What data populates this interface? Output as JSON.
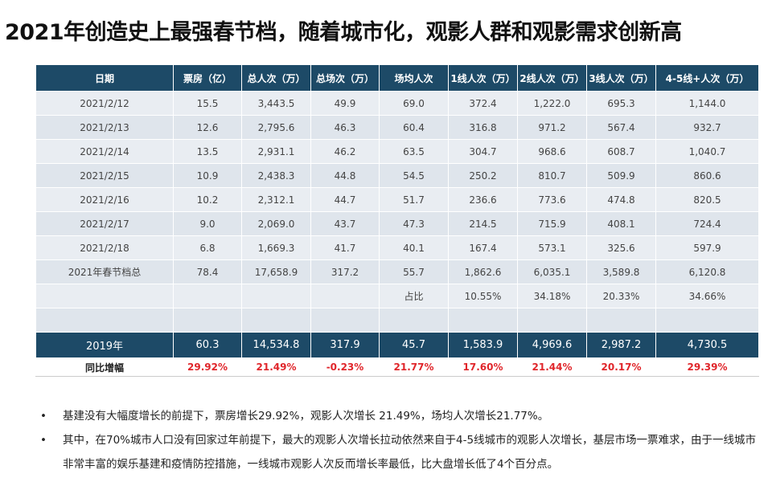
{
  "title": "2021年创造史上最强春节档，随着城市化，观影人群和观影需求创新高",
  "table": {
    "header": [
      "日期",
      "票房（亿）",
      "总人次（万）",
      "总场次（万）",
      "场均人次",
      "1线人次（万）",
      "2线人次（万）",
      "3线人次（万）",
      "4-5线+人次（万）"
    ],
    "rows": [
      [
        "2021/2/12",
        "15.5",
        "3,443.5",
        "49.9",
        "69.0",
        "372.4",
        "1,222.0",
        "695.3",
        "1,144.0"
      ],
      [
        "2021/2/13",
        "12.6",
        "2,795.6",
        "46.3",
        "60.4",
        "316.8",
        "971.2",
        "567.4",
        "932.7"
      ],
      [
        "2021/2/14",
        "13.5",
        "2,931.1",
        "46.2",
        "63.5",
        "304.7",
        "968.6",
        "608.7",
        "1,040.7"
      ],
      [
        "2021/2/15",
        "10.9",
        "2,438.3",
        "44.8",
        "54.5",
        "250.2",
        "810.7",
        "509.9",
        "860.6"
      ],
      [
        "2021/2/16",
        "10.2",
        "2,312.1",
        "44.7",
        "51.7",
        "236.6",
        "773.6",
        "474.8",
        "820.5"
      ],
      [
        "2021/2/17",
        "9.0",
        "2,069.0",
        "43.7",
        "47.3",
        "214.5",
        "715.9",
        "408.1",
        "724.4"
      ],
      [
        "2021/2/18",
        "6.8",
        "1,669.3",
        "41.7",
        "40.1",
        "167.4",
        "573.1",
        "325.6",
        "597.9"
      ],
      [
        "2021年春节档总",
        "78.4",
        "17,658.9",
        "317.2",
        "55.7",
        "1,862.6",
        "6,035.1",
        "3,589.8",
        "6,120.8"
      ]
    ],
    "share": {
      "label": "占比",
      "values": [
        "10.55%",
        "34.18%",
        "20.33%",
        "34.66%"
      ]
    },
    "baseline": [
      "2019年",
      "60.3",
      "14,534.8",
      "317.9",
      "45.7",
      "1,583.9",
      "4,969.6",
      "2,987.2",
      "4,730.5"
    ],
    "growth": [
      "同比增幅",
      "29.92%",
      "21.49%",
      "-0.23%",
      "21.77%",
      "17.60%",
      "21.44%",
      "20.17%",
      "29.39%"
    ]
  },
  "bullets": [
    "基建没有大幅度增长的前提下，票房增长29.92%，观影人次增长 21.49%，场均人次增长21.77%。",
    "其中，在70%城市人口没有回家过年前提下，最大的观影人次增长拉动依然来自于4-5线城市的观影人次增长，基层市场一票难求，由于一线城市非常丰富的娱乐基建和疫情防控措施，一线城市观影人次反而增长率最低，比大盘增长低了4个百分点。"
  ]
}
